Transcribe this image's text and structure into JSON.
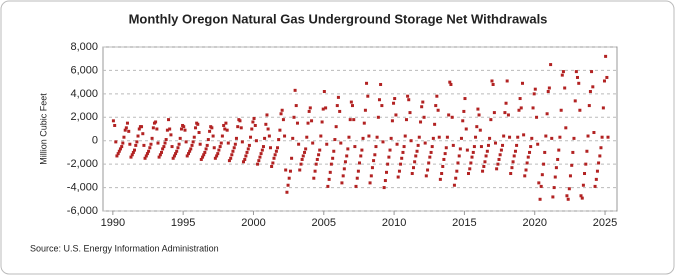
{
  "chart_data": {
    "type": "scatter",
    "title": "Monthly Oregon Natural Gas Underground Storage Net Withdrawals",
    "y_label": "Million Cubic Feet",
    "source": "Source: U.S. Energy Information Administration",
    "color": "#b22222",
    "grid": true,
    "xlim": [
      1989.3,
      2025.85
    ],
    "xticks": [
      1990,
      1995,
      2000,
      2005,
      2010,
      2015,
      2020,
      2025
    ],
    "ylim": [
      -6000,
      8000
    ],
    "yticks": [
      {
        "value": -6000,
        "label": "-6,000"
      },
      {
        "value": -4000,
        "label": "-4,000"
      },
      {
        "value": -2000,
        "label": "-2,000"
      },
      0,
      {
        "value": 2000,
        "label": "2,000"
      },
      {
        "value": 4000,
        "label": "4,000"
      },
      {
        "value": 6000,
        "label": "6,000"
      },
      {
        "value": 8000,
        "label": "8,000"
      }
    ],
    "x": [
      1990.04,
      1990.13,
      1990.21,
      1990.29,
      1990.38,
      1990.46,
      1990.54,
      1990.63,
      1990.71,
      1990.79,
      1990.88,
      1990.96,
      1991.04,
      1991.13,
      1991.21,
      1991.29,
      1991.38,
      1991.46,
      1991.54,
      1991.63,
      1991.71,
      1991.79,
      1991.88,
      1991.96,
      1992.04,
      1992.13,
      1992.21,
      1992.29,
      1992.38,
      1992.46,
      1992.54,
      1992.63,
      1992.71,
      1992.79,
      1992.88,
      1992.96,
      1993.04,
      1993.13,
      1993.21,
      1993.29,
      1993.38,
      1993.46,
      1993.54,
      1993.63,
      1993.71,
      1993.79,
      1993.88,
      1993.96,
      1994.04,
      1994.13,
      1994.21,
      1994.29,
      1994.38,
      1994.46,
      1994.54,
      1994.63,
      1994.71,
      1994.79,
      1994.88,
      1994.96,
      1995.04,
      1995.13,
      1995.21,
      1995.29,
      1995.38,
      1995.46,
      1995.54,
      1995.63,
      1995.71,
      1995.79,
      1995.88,
      1995.96,
      1996.04,
      1996.13,
      1996.21,
      1996.29,
      1996.38,
      1996.46,
      1996.54,
      1996.63,
      1996.71,
      1996.79,
      1996.88,
      1996.96,
      1997.04,
      1997.13,
      1997.21,
      1997.29,
      1997.38,
      1997.46,
      1997.54,
      1997.63,
      1997.71,
      1997.79,
      1997.88,
      1997.96,
      1998.04,
      1998.13,
      1998.21,
      1998.29,
      1998.38,
      1998.46,
      1998.54,
      1998.63,
      1998.71,
      1998.79,
      1998.88,
      1998.96,
      1999.04,
      1999.13,
      1999.21,
      1999.29,
      1999.38,
      1999.46,
      1999.54,
      1999.63,
      1999.71,
      1999.79,
      1999.88,
      1999.96,
      2000.04,
      2000.13,
      2000.21,
      2000.29,
      2000.38,
      2000.46,
      2000.54,
      2000.63,
      2000.71,
      2000.79,
      2000.88,
      2000.96,
      2001.04,
      2001.13,
      2001.21,
      2001.29,
      2001.38,
      2001.46,
      2001.54,
      2001.63,
      2001.71,
      2001.79,
      2001.88,
      2001.96,
      2002.04,
      2002.13,
      2002.21,
      2002.29,
      2002.38,
      2002.46,
      2002.54,
      2002.63,
      2002.71,
      2002.79,
      2002.88,
      2002.96,
      2003.04,
      2003.13,
      2003.21,
      2003.29,
      2003.38,
      2003.46,
      2003.54,
      2003.63,
      2003.71,
      2003.79,
      2003.88,
      2003.96,
      2004.04,
      2004.13,
      2004.21,
      2004.29,
      2004.38,
      2004.46,
      2004.54,
      2004.63,
      2004.71,
      2004.79,
      2004.88,
      2004.96,
      2005.04,
      2005.13,
      2005.21,
      2005.29,
      2005.38,
      2005.46,
      2005.54,
      2005.63,
      2005.71,
      2005.79,
      2005.88,
      2005.96,
      2006.04,
      2006.13,
      2006.21,
      2006.29,
      2006.38,
      2006.46,
      2006.54,
      2006.63,
      2006.71,
      2006.79,
      2006.88,
      2006.96,
      2007.04,
      2007.13,
      2007.21,
      2007.29,
      2007.38,
      2007.46,
      2007.54,
      2007.63,
      2007.71,
      2007.79,
      2007.88,
      2007.96,
      2008.04,
      2008.13,
      2008.21,
      2008.29,
      2008.38,
      2008.46,
      2008.54,
      2008.63,
      2008.71,
      2008.79,
      2008.88,
      2008.96,
      2009.04,
      2009.13,
      2009.21,
      2009.29,
      2009.38,
      2009.46,
      2009.54,
      2009.63,
      2009.71,
      2009.79,
      2009.88,
      2009.96,
      2010.04,
      2010.13,
      2010.21,
      2010.29,
      2010.38,
      2010.46,
      2010.54,
      2010.63,
      2010.71,
      2010.79,
      2010.88,
      2010.96,
      2011.04,
      2011.13,
      2011.21,
      2011.29,
      2011.38,
      2011.46,
      2011.54,
      2011.63,
      2011.71,
      2011.79,
      2011.88,
      2011.96,
      2012.04,
      2012.13,
      2012.21,
      2012.29,
      2012.38,
      2012.46,
      2012.54,
      2012.63,
      2012.71,
      2012.79,
      2012.88,
      2012.96,
      2013.04,
      2013.13,
      2013.21,
      2013.29,
      2013.38,
      2013.46,
      2013.54,
      2013.63,
      2013.71,
      2013.79,
      2013.88,
      2013.96,
      2014.04,
      2014.13,
      2014.21,
      2014.29,
      2014.38,
      2014.46,
      2014.54,
      2014.63,
      2014.71,
      2014.79,
      2014.88,
      2014.96,
      2015.04,
      2015.13,
      2015.21,
      2015.29,
      2015.38,
      2015.46,
      2015.54,
      2015.63,
      2015.71,
      2015.79,
      2015.88,
      2015.96,
      2016.04,
      2016.13,
      2016.21,
      2016.29,
      2016.38,
      2016.46,
      2016.54,
      2016.63,
      2016.71,
      2016.79,
      2016.88,
      2016.96,
      2017.04,
      2017.13,
      2017.21,
      2017.29,
      2017.38,
      2017.46,
      2017.54,
      2017.63,
      2017.71,
      2017.79,
      2017.88,
      2017.96,
      2018.04,
      2018.13,
      2018.21,
      2018.29,
      2018.38,
      2018.46,
      2018.54,
      2018.63,
      2018.71,
      2018.79,
      2018.88,
      2018.96,
      2019.04,
      2019.13,
      2019.21,
      2019.29,
      2019.38,
      2019.46,
      2019.54,
      2019.63,
      2019.71,
      2019.79,
      2019.88,
      2019.96,
      2020.04,
      2020.13,
      2020.21,
      2020.29,
      2020.38,
      2020.46,
      2020.54,
      2020.63,
      2020.71,
      2020.79,
      2020.88,
      2020.96,
      2021.04,
      2021.13,
      2021.21,
      2021.29,
      2021.38,
      2021.46,
      2021.54,
      2021.63,
      2021.71,
      2021.79,
      2021.88,
      2021.96,
      2022.04,
      2022.13,
      2022.21,
      2022.29,
      2022.38,
      2022.46,
      2022.54,
      2022.63,
      2022.71,
      2022.79,
      2022.88,
      2022.96,
      2023.04,
      2023.13,
      2023.21,
      2023.29,
      2023.38,
      2023.46,
      2023.54,
      2023.63,
      2023.71,
      2023.79,
      2023.88,
      2023.96,
      2024.04,
      2024.13,
      2024.21,
      2024.29,
      2024.38,
      2024.46,
      2024.54,
      2024.63,
      2024.71,
      2024.79,
      2024.88,
      2024.96,
      2025.04,
      2025.13,
      2025.21
    ],
    "values": [
      1700,
      1300,
      -100,
      -1300,
      -1100,
      -900,
      -700,
      -500,
      -200,
      300,
      900,
      1100,
      1500,
      800,
      -300,
      -1400,
      -1200,
      -1000,
      -800,
      -400,
      -100,
      400,
      1000,
      1200,
      1200,
      600,
      -400,
      -1500,
      -1300,
      -1100,
      -900,
      -600,
      -300,
      200,
      1100,
      1500,
      1600,
      1000,
      -200,
      -1400,
      -1200,
      -1000,
      -700,
      -500,
      -200,
      100,
      900,
      1800,
      1000,
      500,
      -500,
      -1500,
      -1300,
      -1100,
      -900,
      -600,
      -300,
      200,
      1000,
      1300,
      1200,
      900,
      -100,
      -1300,
      -1100,
      -900,
      -700,
      -400,
      -100,
      300,
      1100,
      1500,
      1400,
      700,
      -300,
      -1600,
      -1400,
      -1200,
      -1000,
      -700,
      -400,
      100,
      800,
      1200,
      1100,
      400,
      -600,
      -1500,
      -1300,
      -1100,
      -800,
      -500,
      -200,
      400,
      1300,
      1000,
      1500,
      900,
      -200,
      -1700,
      -1500,
      -1200,
      -900,
      -600,
      -300,
      200,
      1200,
      1800,
      1700,
      1100,
      -100,
      -1800,
      -1600,
      -1300,
      -1000,
      -700,
      -400,
      300,
      1000,
      1600,
      1900,
      1300,
      0,
      -2000,
      -1700,
      -1400,
      -1100,
      -800,
      -500,
      200,
      1400,
      2200,
      1000,
      400,
      -600,
      -2200,
      -1900,
      -1500,
      -1200,
      -900,
      -600,
      100,
      900,
      2300,
      2600,
      1800,
      400,
      -2500,
      -4400,
      -3800,
      -3200,
      -2600,
      -1500,
      200,
      2000,
      4300,
      3000,
      1500,
      -300,
      -2500,
      -2000,
      -1600,
      -1300,
      -1000,
      -700,
      300,
      1500,
      2500,
      2800,
      1700,
      -200,
      -3200,
      -2600,
      -2000,
      -1600,
      -1200,
      -800,
      400,
      1600,
      2700,
      4200,
      2800,
      -300,
      -3900,
      -3300,
      -2700,
      -2000,
      -1500,
      -900,
      100,
      1200,
      3000,
      3700,
      2500,
      -200,
      -3600,
      -3000,
      -2400,
      -1800,
      -1300,
      -700,
      300,
      1800,
      3300,
      3000,
      1800,
      -500,
      -3900,
      -3200,
      -2600,
      -1900,
      -1300,
      -800,
      200,
      1500,
      2600,
      4900,
      3800,
      400,
      -3600,
      -3000,
      -2300,
      -1700,
      -1200,
      -500,
      300,
      2000,
      3500,
      4800,
      3000,
      -100,
      -4000,
      -3400,
      -2700,
      -2000,
      -1400,
      -800,
      200,
      1700,
      3200,
      3600,
      2200,
      -300,
      -3100,
      -2600,
      -2000,
      -1500,
      -1000,
      -500,
      400,
      1800,
      3800,
      3500,
      2400,
      0,
      -2800,
      -2300,
      -1800,
      -1300,
      -900,
      -400,
      300,
      1600,
      2900,
      3300,
      2000,
      -200,
      -3000,
      -2500,
      -1900,
      -1400,
      -1000,
      -500,
      200,
      1400,
      3000,
      3800,
      2600,
      300,
      -3300,
      -2800,
      -2200,
      -1600,
      -1100,
      -600,
      300,
      2200,
      5000,
      4800,
      2000,
      -400,
      -3800,
      -3200,
      -2600,
      -1900,
      -1300,
      -700,
      200,
      1700,
      2500,
      3600,
      1000,
      -800,
      -2800,
      -2400,
      -1900,
      -1400,
      -1000,
      -500,
      300,
      1200,
      2700,
      2200,
      900,
      -500,
      -2600,
      -2200,
      -1800,
      -1300,
      -900,
      -400,
      200,
      1800,
      5100,
      4800,
      2400,
      -200,
      -2400,
      -2000,
      -1600,
      -1200,
      -800,
      -400,
      400,
      2400,
      3200,
      5100,
      2200,
      300,
      -2800,
      -2300,
      -1800,
      -1300,
      -900,
      -400,
      300,
      2600,
      3600,
      2800,
      4900,
      500,
      -3000,
      -2500,
      -1900,
      -1400,
      -1000,
      -500,
      200,
      2800,
      4000,
      4400,
      2000,
      -300,
      -3600,
      -5000,
      -3900,
      -2900,
      -2000,
      -1000,
      400,
      2300,
      4200,
      4500,
      6500,
      200,
      -4800,
      -4000,
      -3100,
      -2300,
      -1600,
      -800,
      300,
      2600,
      5600,
      5900,
      4500,
      1100,
      -4700,
      -5000,
      -4100,
      -3000,
      -2100,
      -1000,
      200,
      3400,
      5900,
      5400,
      4900,
      2600,
      -4700,
      -4900,
      -3800,
      -2800,
      -2000,
      -900,
      400,
      3000,
      4200,
      5900,
      4600,
      700,
      -3900,
      -3300,
      -2600,
      -1900,
      -1300,
      -600,
      300,
      2800,
      5100,
      7200,
      5400,
      300
    ]
  }
}
